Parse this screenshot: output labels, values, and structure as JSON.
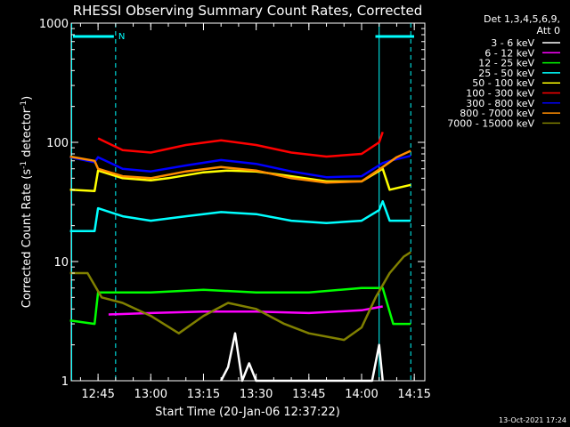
{
  "chart_data": {
    "type": "line",
    "title": "RHESSI Observing Summary Count Rates, Corrected",
    "xlabel": "Start Time (20-Jan-06 12:37:22)",
    "ylabel_parts": {
      "main": "Corrected Count Rate (s",
      "sup1": "-1",
      "mid": " detector",
      "sup2": "-1",
      "end": ")"
    },
    "y_scale": "log",
    "ylim": [
      1,
      1000
    ],
    "y_ticks": [
      {
        "value": 1,
        "label": "1"
      },
      {
        "value": 10,
        "label": "10"
      },
      {
        "value": 100,
        "label": "100"
      },
      {
        "value": 1000,
        "label": "1000"
      }
    ],
    "xlim": [
      "12:37:22",
      "14:18:00"
    ],
    "x_ticks": [
      {
        "value": "12:45",
        "label": "12:45"
      },
      {
        "value": "13:00",
        "label": "13:00"
      },
      {
        "value": "13:15",
        "label": "13:15"
      },
      {
        "value": "13:30",
        "label": "13:30"
      },
      {
        "value": "13:45",
        "label": "13:45"
      },
      {
        "value": "14:00",
        "label": "14:00"
      },
      {
        "value": "14:15",
        "label": "14:15"
      }
    ],
    "legend_header": [
      "Det 1,3,4,5,6,9,",
      "Att 0"
    ],
    "legend_placement": "right",
    "series": [
      {
        "name": "3 - 6 keV",
        "color": "#ffffff",
        "points": [
          [
            "13:20",
            1.0
          ],
          [
            "13:22",
            1.3
          ],
          [
            "13:24",
            2.5
          ],
          [
            "13:26",
            1.0
          ],
          [
            "13:28",
            1.4
          ],
          [
            "13:30",
            1.0
          ],
          [
            "14:03",
            1.0
          ],
          [
            "14:05",
            2.0
          ],
          [
            "14:06",
            1.0
          ]
        ]
      },
      {
        "name": "6 - 12 keV",
        "color": "#ff00ff",
        "points": [
          [
            "12:48",
            3.6
          ],
          [
            "13:00",
            3.7
          ],
          [
            "13:15",
            3.8
          ],
          [
            "13:30",
            3.8
          ],
          [
            "13:45",
            3.7
          ],
          [
            "14:00",
            3.9
          ],
          [
            "14:06",
            4.2
          ]
        ]
      },
      {
        "name": "12 - 25 keV",
        "color": "#00ff00",
        "points": [
          [
            "12:37",
            3.2
          ],
          [
            "12:44",
            3.0
          ],
          [
            "12:45",
            5.5
          ],
          [
            "13:00",
            5.5
          ],
          [
            "13:15",
            5.8
          ],
          [
            "13:30",
            5.5
          ],
          [
            "13:45",
            5.5
          ],
          [
            "14:00",
            6.0
          ],
          [
            "14:06",
            6.0
          ],
          [
            "14:09",
            3.0
          ],
          [
            "14:14",
            3.0
          ]
        ]
      },
      {
        "name": "25 - 50 keV",
        "color": "#00ffff",
        "points": [
          [
            "12:37",
            18
          ],
          [
            "12:44",
            18
          ],
          [
            "12:45",
            28
          ],
          [
            "12:52",
            24
          ],
          [
            "13:00",
            22
          ],
          [
            "13:10",
            24
          ],
          [
            "13:20",
            26
          ],
          [
            "13:30",
            25
          ],
          [
            "13:40",
            22
          ],
          [
            "13:50",
            21
          ],
          [
            "14:00",
            22
          ],
          [
            "14:05",
            27
          ],
          [
            "14:06",
            32
          ],
          [
            "14:08",
            22
          ],
          [
            "14:14",
            22
          ]
        ]
      },
      {
        "name": "50 - 100 keV",
        "color": "#ffff00",
        "points": [
          [
            "12:37",
            40
          ],
          [
            "12:44",
            39
          ],
          [
            "12:45",
            58
          ],
          [
            "12:52",
            50
          ],
          [
            "13:00",
            48
          ],
          [
            "13:05",
            50
          ],
          [
            "13:15",
            56
          ],
          [
            "13:22",
            58
          ],
          [
            "13:30",
            57
          ],
          [
            "13:40",
            52
          ],
          [
            "13:50",
            47
          ],
          [
            "14:00",
            47
          ],
          [
            "14:06",
            60
          ],
          [
            "14:08",
            40
          ],
          [
            "14:14",
            44
          ]
        ]
      },
      {
        "name": "100 - 300 keV",
        "color": "#ff0000",
        "points": [
          [
            "12:45",
            108
          ],
          [
            "12:52",
            86
          ],
          [
            "13:00",
            82
          ],
          [
            "13:10",
            95
          ],
          [
            "13:20",
            104
          ],
          [
            "13:30",
            95
          ],
          [
            "13:40",
            82
          ],
          [
            "13:50",
            76
          ],
          [
            "14:00",
            80
          ],
          [
            "14:05",
            100
          ],
          [
            "14:06",
            122
          ]
        ]
      },
      {
        "name": "300 - 800 keV",
        "color": "#0000ff",
        "points": [
          [
            "12:37",
            75
          ],
          [
            "12:44",
            68
          ],
          [
            "12:45",
            75
          ],
          [
            "12:52",
            60
          ],
          [
            "13:00",
            57
          ],
          [
            "13:10",
            64
          ],
          [
            "13:20",
            71
          ],
          [
            "13:30",
            66
          ],
          [
            "13:40",
            57
          ],
          [
            "13:50",
            51
          ],
          [
            "14:00",
            52
          ],
          [
            "14:06",
            67
          ],
          [
            "14:08",
            70
          ],
          [
            "14:14",
            77
          ]
        ]
      },
      {
        "name": "800 - 7000 keV",
        "color": "#ff8c00",
        "points": [
          [
            "12:37",
            76
          ],
          [
            "12:44",
            70
          ],
          [
            "12:45",
            60
          ],
          [
            "12:52",
            52
          ],
          [
            "13:00",
            50
          ],
          [
            "13:10",
            57
          ],
          [
            "13:20",
            62
          ],
          [
            "13:30",
            58
          ],
          [
            "13:40",
            50
          ],
          [
            "13:50",
            46
          ],
          [
            "14:00",
            47
          ],
          [
            "14:06",
            62
          ],
          [
            "14:10",
            75
          ],
          [
            "14:14",
            85
          ]
        ]
      },
      {
        "name": "7000 - 15000 keV",
        "color": "#808000",
        "points": [
          [
            "12:37",
            8
          ],
          [
            "12:42",
            8
          ],
          [
            "12:46",
            5
          ],
          [
            "12:52",
            4.5
          ],
          [
            "13:00",
            3.5
          ],
          [
            "13:08",
            2.5
          ],
          [
            "13:15",
            3.5
          ],
          [
            "13:22",
            4.5
          ],
          [
            "13:30",
            4.0
          ],
          [
            "13:38",
            3.0
          ],
          [
            "13:45",
            2.5
          ],
          [
            "13:55",
            2.2
          ],
          [
            "14:00",
            2.8
          ],
          [
            "14:04",
            5.0
          ],
          [
            "14:08",
            8.0
          ],
          [
            "14:12",
            11.0
          ],
          [
            "14:14",
            12.0
          ]
        ]
      }
    ],
    "markers": [
      {
        "label": "N",
        "start": "12:50",
        "end": "14:09",
        "color": "#00ffff"
      }
    ],
    "vertical_lines": [
      {
        "time": "12:37:30",
        "color": "#00ffff",
        "style": "solid"
      },
      {
        "time": "12:50:00",
        "color": "#00ffff",
        "style": "dashed"
      },
      {
        "time": "14:05:00",
        "color": "#00ffff",
        "style": "solid"
      },
      {
        "time": "14:14:00",
        "color": "#00ffff",
        "style": "dashed"
      }
    ],
    "footer": "13-Oct-2021 17:24"
  }
}
